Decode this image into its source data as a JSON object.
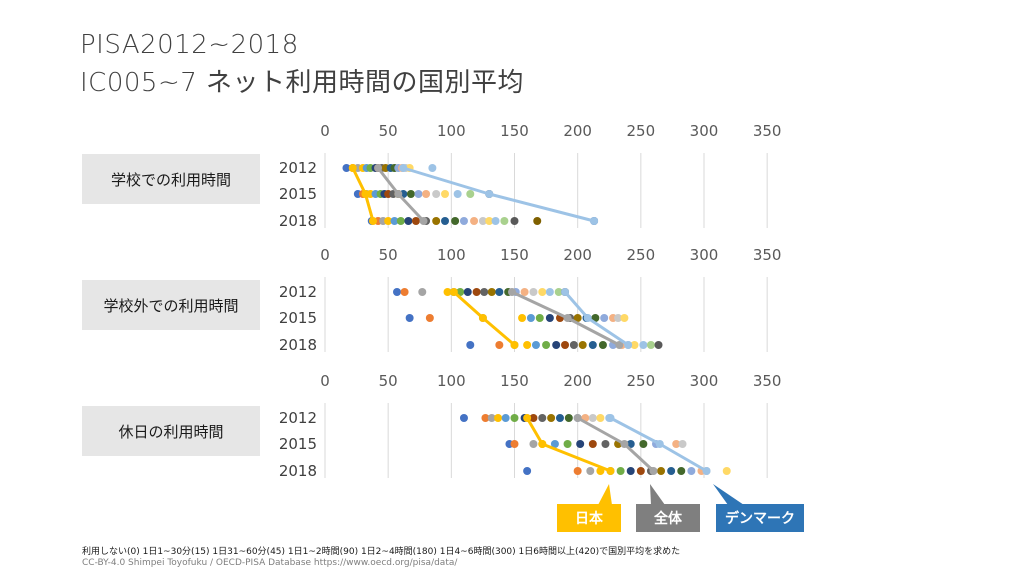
{
  "title_line1": "PISA2012~2018",
  "title_line2": "IC005~7 ネット利用時間の国別平均",
  "footnote": "利用しない(0) 1日1~30分(15) 1日31~60分(45) 1日1~2時間(90) 1日2~4時間(180) 1日4~6時間(300) 1日6時間以上(420)で国別平均を求めた",
  "credit": "CC-BY-4.0 Shimpei Toyofuku / OECD-PISA Database https://www.oecd.org/pisa/data/",
  "callouts": {
    "japan": {
      "label": "日本",
      "color": "#ffc000"
    },
    "overall": {
      "label": "全体",
      "color": "#7f7f7f"
    },
    "denmark": {
      "label": "デンマーク",
      "color": "#2e75b6"
    }
  },
  "chart_data": [
    {
      "type": "scatter",
      "title": "学校での利用時間",
      "xlim": [
        0,
        350
      ],
      "xticks": [
        0,
        50,
        100,
        150,
        200,
        250,
        300,
        350
      ],
      "categories": [
        "2012",
        "2015",
        "2018"
      ],
      "points": [
        [
          17,
          22,
          26,
          30,
          33,
          36,
          40,
          42,
          45,
          48,
          52,
          55,
          58,
          61,
          64,
          67,
          85
        ],
        [
          26,
          30,
          33,
          36,
          40,
          44,
          47,
          50,
          54,
          58,
          62,
          68,
          74,
          80,
          88,
          95,
          105,
          115,
          130
        ],
        [
          37,
          42,
          46,
          50,
          55,
          60,
          66,
          72,
          80,
          88,
          95,
          103,
          110,
          118,
          125,
          130,
          135,
          142,
          150,
          168,
          213
        ]
      ],
      "point_colors": [
        "#4472c4",
        "#ed7d31",
        "#a5a5a5",
        "#ffc000",
        "#5b9bd5",
        "#70ad47",
        "#264478",
        "#9e480e",
        "#636363",
        "#997300",
        "#255e91",
        "#43682b",
        "#8faadc",
        "#f4b183",
        "#c9c9c9",
        "#ffd966",
        "#9dc3e6",
        "#a9d18e",
        "#595959",
        "#7f6000",
        "#2f5597"
      ],
      "series": [
        {
          "name": "日本",
          "values": [
            22,
            32,
            38
          ],
          "color": "#ffc000"
        },
        {
          "name": "全体",
          "values": [
            42,
            58,
            78
          ],
          "color": "#a5a5a5"
        },
        {
          "name": "デンマーク",
          "values": [
            62,
            130,
            213
          ],
          "color": "#9dc3e6"
        }
      ]
    },
    {
      "type": "scatter",
      "title": "学校外での利用時間",
      "xlim": [
        0,
        350
      ],
      "xticks": [
        0,
        50,
        100,
        150,
        200,
        250,
        300,
        350
      ],
      "categories": [
        "2012",
        "2015",
        "2018"
      ],
      "points": [
        [
          57,
          63,
          77,
          97,
          102,
          107,
          113,
          120,
          126,
          132,
          138,
          145,
          151,
          158,
          165,
          172,
          178,
          185,
          190
        ],
        [
          67,
          83,
          125,
          156,
          163,
          170,
          178,
          186,
          194,
          200,
          207,
          214,
          221,
          228,
          232,
          237
        ],
        [
          115,
          138,
          150,
          160,
          167,
          175,
          183,
          190,
          197,
          204,
          212,
          220,
          228,
          235,
          240,
          245,
          252,
          258,
          264
        ]
      ],
      "point_colors": [
        "#4472c4",
        "#ed7d31",
        "#a5a5a5",
        "#ffc000",
        "#5b9bd5",
        "#70ad47",
        "#264478",
        "#9e480e",
        "#636363",
        "#997300",
        "#255e91",
        "#43682b",
        "#8faadc",
        "#f4b183",
        "#c9c9c9",
        "#ffd966",
        "#9dc3e6",
        "#a9d18e",
        "#595959"
      ],
      "series": [
        {
          "name": "日本",
          "values": [
            102,
            125,
            150
          ],
          "color": "#ffc000"
        },
        {
          "name": "全体",
          "values": [
            148,
            192,
            233
          ],
          "color": "#a5a5a5"
        },
        {
          "name": "デンマーク",
          "values": [
            190,
            208,
            240
          ],
          "color": "#9dc3e6"
        }
      ]
    },
    {
      "type": "scatter",
      "title": "休日の利用時間",
      "xlim": [
        0,
        350
      ],
      "xticks": [
        0,
        50,
        100,
        150,
        200,
        250,
        300,
        350
      ],
      "categories": [
        "2012",
        "2015",
        "2018"
      ],
      "points": [
        [
          110,
          127,
          132,
          137,
          143,
          150,
          158,
          165,
          172,
          179,
          186,
          193,
          200,
          206,
          212,
          218,
          225
        ],
        [
          146,
          150,
          165,
          172,
          182,
          192,
          202,
          212,
          222,
          232,
          242,
          252,
          262,
          278,
          283
        ],
        [
          160,
          200,
          210,
          218,
          226,
          234,
          242,
          250,
          258,
          266,
          274,
          282,
          290,
          298,
          302,
          318
        ]
      ],
      "point_colors": [
        "#4472c4",
        "#ed7d31",
        "#a5a5a5",
        "#ffc000",
        "#5b9bd5",
        "#70ad47",
        "#264478",
        "#9e480e",
        "#636363",
        "#997300",
        "#255e91",
        "#43682b",
        "#8faadc",
        "#f4b183",
        "#c9c9c9",
        "#ffd966",
        "#9dc3e6"
      ],
      "series": [
        {
          "name": "日本",
          "values": [
            160,
            172,
            226
          ],
          "color": "#ffc000"
        },
        {
          "name": "全体",
          "values": [
            200,
            237,
            260
          ],
          "color": "#a5a5a5"
        },
        {
          "name": "デンマーク",
          "values": [
            226,
            265,
            302
          ],
          "color": "#9dc3e6"
        }
      ]
    }
  ]
}
